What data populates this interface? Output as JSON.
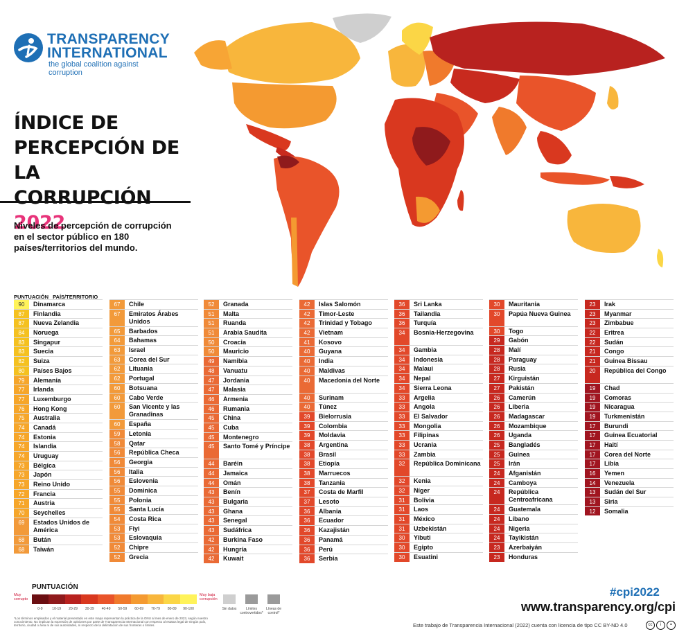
{
  "header": {
    "org_line1": "TRANSPARENCY",
    "org_line2": "INTERNATIONAL",
    "org_tagline": "the global coalition against corruption",
    "title_line1": "ÍNDICE DE",
    "title_line2": "PERCEPCIÓN DE LA",
    "title_line3": "CORRUPCIÓN",
    "title_year": "2022",
    "subtitle": "Niveles de percepción de corrupción en el sector público en 180 países/territorios del mundo."
  },
  "table_header": {
    "score": "PUNTUACIÓN",
    "country": "PAÍS/TERRITORIO"
  },
  "columns": [
    [
      [
        "90",
        "Dinamarca"
      ],
      [
        "87",
        "Finlandia"
      ],
      [
        "87",
        "Nueva Zelandia"
      ],
      [
        "84",
        "Noruega"
      ],
      [
        "83",
        "Singapur"
      ],
      [
        "83",
        "Suecia"
      ],
      [
        "82",
        "Suiza"
      ],
      [
        "80",
        "Países Bajos"
      ],
      [
        "79",
        "Alemania"
      ],
      [
        "77",
        "Irlanda"
      ],
      [
        "77",
        "Luxemburgo"
      ],
      [
        "76",
        "Hong Kong"
      ],
      [
        "75",
        "Australia"
      ],
      [
        "74",
        "Canadá"
      ],
      [
        "74",
        "Estonia"
      ],
      [
        "74",
        "Islandia"
      ],
      [
        "74",
        "Uruguay"
      ],
      [
        "73",
        "Bélgica"
      ],
      [
        "73",
        "Japón"
      ],
      [
        "73",
        "Reino Unido"
      ],
      [
        "72",
        "Francia"
      ],
      [
        "71",
        "Austria"
      ],
      [
        "70",
        "Seychelles"
      ],
      [
        "69",
        "Estados Unidos de América"
      ],
      [
        "68",
        "Bután"
      ],
      [
        "68",
        "Taiwán"
      ]
    ],
    [
      [
        "67",
        "Chile"
      ],
      [
        "67",
        "Emiratos Árabes Unidos"
      ],
      [
        "65",
        "Barbados"
      ],
      [
        "64",
        "Bahamas"
      ],
      [
        "63",
        "Israel"
      ],
      [
        "63",
        "Corea del Sur"
      ],
      [
        "62",
        "Lituania"
      ],
      [
        "62",
        "Portugal"
      ],
      [
        "60",
        "Botsuana"
      ],
      [
        "60",
        "Cabo Verde"
      ],
      [
        "60",
        "San Vicente y las Granadinas"
      ],
      [
        "60",
        "España"
      ],
      [
        "59",
        "Letonia"
      ],
      [
        "58",
        "Qatar"
      ],
      [
        "56",
        "República Checa"
      ],
      [
        "56",
        "Georgia"
      ],
      [
        "56",
        "Italia"
      ],
      [
        "56",
        "Eslovenia"
      ],
      [
        "55",
        "Dominica"
      ],
      [
        "55",
        "Polonia"
      ],
      [
        "55",
        "Santa Lucía"
      ],
      [
        "54",
        "Costa Rica"
      ],
      [
        "53",
        "Fiyi"
      ],
      [
        "53",
        "Eslovaquia"
      ],
      [
        "52",
        "Chipre"
      ],
      [
        "52",
        "Grecia"
      ]
    ],
    [
      [
        "52",
        "Granada"
      ],
      [
        "51",
        "Malta"
      ],
      [
        "51",
        "Ruanda"
      ],
      [
        "51",
        "Arabia Saudita"
      ],
      [
        "50",
        "Croacia"
      ],
      [
        "50",
        "Mauricio"
      ],
      [
        "49",
        "Namibia"
      ],
      [
        "48",
        "Vanuatu"
      ],
      [
        "47",
        "Jordania"
      ],
      [
        "47",
        "Malasia"
      ],
      [
        "46",
        "Armenia"
      ],
      [
        "46",
        "Rumania"
      ],
      [
        "45",
        "China"
      ],
      [
        "45",
        "Cuba"
      ],
      [
        "45",
        "Montenegro"
      ],
      [
        "45",
        "Santo Tomé y Príncipe"
      ],
      [
        "44",
        "Baréin"
      ],
      [
        "44",
        "Jamaica"
      ],
      [
        "44",
        "Omán"
      ],
      [
        "43",
        "Benín"
      ],
      [
        "43",
        "Bulgaria"
      ],
      [
        "43",
        "Ghana"
      ],
      [
        "43",
        "Senegal"
      ],
      [
        "43",
        "Sudáfrica"
      ],
      [
        "42",
        "Burkina Faso"
      ],
      [
        "42",
        "Hungría"
      ],
      [
        "42",
        "Kuwait"
      ]
    ],
    [
      [
        "42",
        "Islas Salomón"
      ],
      [
        "42",
        "Timor-Leste"
      ],
      [
        "42",
        "Trinidad y Tobago"
      ],
      [
        "42",
        "Vietnam"
      ],
      [
        "41",
        "Kosovo"
      ],
      [
        "40",
        "Guyana"
      ],
      [
        "40",
        "India"
      ],
      [
        "40",
        "Maldivas"
      ],
      [
        "40",
        "Macedonia del Norte"
      ],
      [
        "40",
        "Surinam"
      ],
      [
        "40",
        "Túnez"
      ],
      [
        "39",
        "Bielorrusia"
      ],
      [
        "39",
        "Colombia"
      ],
      [
        "39",
        "Moldavia"
      ],
      [
        "38",
        "Argentina"
      ],
      [
        "38",
        "Brasil"
      ],
      [
        "38",
        "Etiopía"
      ],
      [
        "38",
        "Marruecos"
      ],
      [
        "38",
        "Tanzania"
      ],
      [
        "37",
        "Costa de Marfil"
      ],
      [
        "37",
        "Lesoto"
      ],
      [
        "36",
        "Albania"
      ],
      [
        "36",
        "Ecuador"
      ],
      [
        "36",
        "Kazajistán"
      ],
      [
        "36",
        "Panamá"
      ],
      [
        "36",
        "Perú"
      ],
      [
        "36",
        "Serbia"
      ]
    ],
    [
      [
        "36",
        "Sri Lanka"
      ],
      [
        "36",
        "Tailandia"
      ],
      [
        "36",
        "Turquía"
      ],
      [
        "34",
        "Bosnia-Herzegovina"
      ],
      [
        "34",
        "Gambia"
      ],
      [
        "34",
        "Indonesia"
      ],
      [
        "34",
        "Malaui"
      ],
      [
        "34",
        "Nepal"
      ],
      [
        "34",
        "Sierra Leona"
      ],
      [
        "33",
        "Argelia"
      ],
      [
        "33",
        "Angola"
      ],
      [
        "33",
        "El Salvador"
      ],
      [
        "33",
        "Mongolia"
      ],
      [
        "33",
        "Filipinas"
      ],
      [
        "33",
        "Ucrania"
      ],
      [
        "33",
        "Zambia"
      ],
      [
        "32",
        "República Dominicana"
      ],
      [
        "32",
        "Kenia"
      ],
      [
        "32",
        "Níger"
      ],
      [
        "31",
        "Bolivia"
      ],
      [
        "31",
        "Laos"
      ],
      [
        "31",
        "México"
      ],
      [
        "31",
        "Uzbekistán"
      ],
      [
        "30",
        "Yibuti"
      ],
      [
        "30",
        "Egipto"
      ],
      [
        "30",
        "Esuatini"
      ]
    ],
    [
      [
        "30",
        "Mauritania"
      ],
      [
        "30",
        "Papúa Nueva Guinea"
      ],
      [
        "30",
        "Togo"
      ],
      [
        "29",
        "Gabón"
      ],
      [
        "28",
        "Malí"
      ],
      [
        "28",
        "Paraguay"
      ],
      [
        "28",
        "Rusia"
      ],
      [
        "27",
        "Kirguistán"
      ],
      [
        "27",
        "Pakistán"
      ],
      [
        "26",
        "Camerún"
      ],
      [
        "26",
        "Liberia"
      ],
      [
        "26",
        "Madagascar"
      ],
      [
        "26",
        "Mozambique"
      ],
      [
        "26",
        "Uganda"
      ],
      [
        "25",
        "Bangladés"
      ],
      [
        "25",
        "Guinea"
      ],
      [
        "25",
        "Irán"
      ],
      [
        "24",
        "Afganistán"
      ],
      [
        "24",
        "Camboya"
      ],
      [
        "24",
        "República Centroafricana"
      ],
      [
        "24",
        "Guatemala"
      ],
      [
        "24",
        "Líbano"
      ],
      [
        "24",
        "Nigeria"
      ],
      [
        "24",
        "Tayikistán"
      ],
      [
        "23",
        "Azerbaiyán"
      ],
      [
        "23",
        "Honduras"
      ]
    ],
    [
      [
        "23",
        "Irak"
      ],
      [
        "23",
        "Myanmar"
      ],
      [
        "23",
        "Zimbabue"
      ],
      [
        "22",
        "Eritrea"
      ],
      [
        "22",
        "Sudán"
      ],
      [
        "21",
        "Congo"
      ],
      [
        "21",
        "Guinea Bissau"
      ],
      [
        "20",
        "República del Congo"
      ],
      [
        "19",
        "Chad"
      ],
      [
        "19",
        "Comoras"
      ],
      [
        "19",
        "Nicaragua"
      ],
      [
        "19",
        "Turkmenistán"
      ],
      [
        "17",
        "Burundi"
      ],
      [
        "17",
        "Guinea Ecuatorial"
      ],
      [
        "17",
        "Haití"
      ],
      [
        "17",
        "Corea del Norte"
      ],
      [
        "17",
        "Libia"
      ],
      [
        "16",
        "Yemen"
      ],
      [
        "14",
        "Venezuela"
      ],
      [
        "13",
        "Sudán del Sur"
      ],
      [
        "13",
        "Siria"
      ],
      [
        "12",
        "Somalia"
      ]
    ]
  ],
  "legend": {
    "title": "PUNTUACIÓN",
    "left_label": "Muy corrupto",
    "right_label": "Muy baja corrupción",
    "ranges": [
      "0-9",
      "10-19",
      "20-29",
      "30-39",
      "40-49",
      "50-59",
      "60-69",
      "70-79",
      "80-89",
      "90-100"
    ],
    "colors": [
      "#6b0f12",
      "#8f1a1c",
      "#b8221f",
      "#d9381f",
      "#e9542a",
      "#f07a2c",
      "#f49a31",
      "#f8b63c",
      "#fbd646",
      "#fff35a"
    ],
    "no_data": "Sin datos",
    "disputed": "Límites controvertidos*",
    "control": "Líneas de control*",
    "footnote": "*Los términos empleados y el material presentado en este mapa representan la práctica de la ONU al mes de enero de 2023, según nuestro conocimiento. No implican la expresión de opiniones por parte de Transparencia Internacional con respecto al estatus legal de ningún país, territorio, ciudad o área ni de sus autoridades, ni respecto de la delimitación de sus fronteras o límites."
  },
  "footer": {
    "hashtag": "#cpi2022",
    "url": "www.transparency.org/cpi",
    "license": "Este trabajo de Transparencia Internacional (2022) cuenta con licencia de tipo CC BY-ND 4.0"
  }
}
